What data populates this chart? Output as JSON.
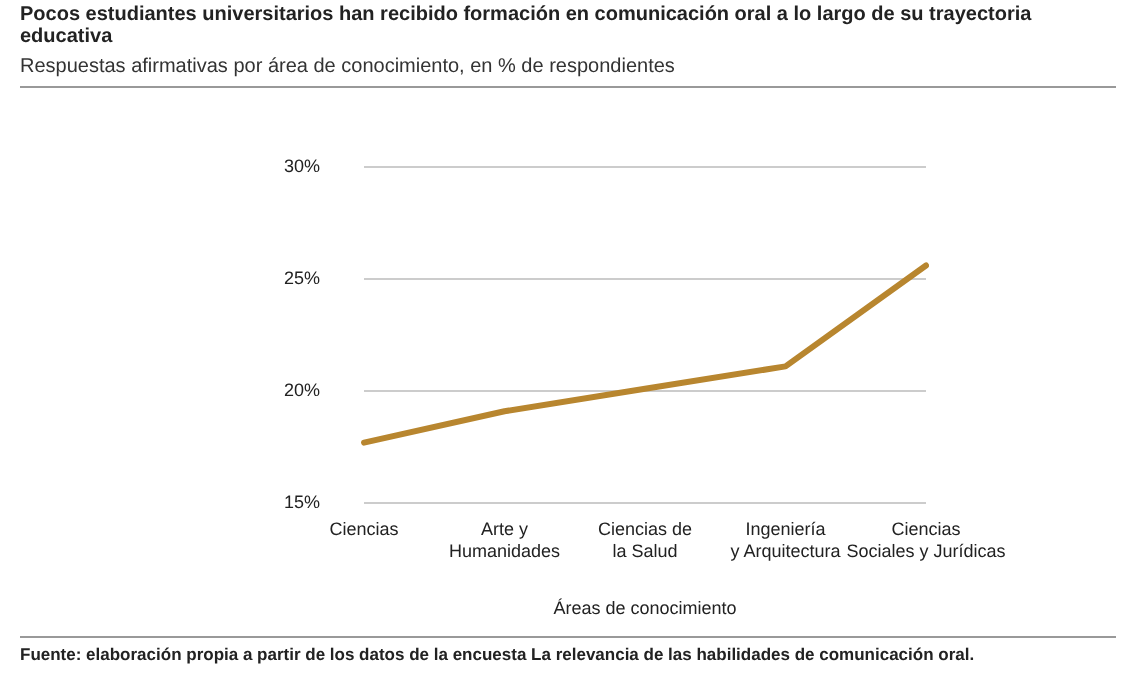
{
  "chart_data": {
    "type": "line",
    "title": "Pocos estudiantes universitarios han recibido formación en comunicación oral a lo largo de su trayectoria educativa",
    "subtitle": "Respuestas afirmativas por área de conocimiento, en % de respondientes",
    "xlabel": "Áreas de conocimiento",
    "categories": [
      "Ciencias",
      "Arte y\nHumanidades",
      "Ciencias de\nla Salud",
      "Ingeniería\ny Arquitectura",
      "Ciencias\nSociales y Jurídicas"
    ],
    "series": [
      {
        "color": "#b8862f",
        "values": [
          17.7,
          19.1,
          20.1,
          21.1,
          25.6
        ]
      }
    ],
    "ylim": [
      15,
      30
    ],
    "yticks": [
      {
        "value": 15,
        "label": "15%"
      },
      {
        "value": 20,
        "label": "20%"
      },
      {
        "value": 25,
        "label": "25%"
      },
      {
        "value": 30,
        "label": "30%"
      }
    ],
    "grid": "y",
    "legend": false,
    "marker": "none",
    "line_style": "solid",
    "annotations": [
      "Fuente: elaboración propia a partir de los datos de la encuesta La relevancia de las habilidades de comunicación oral."
    ]
  }
}
